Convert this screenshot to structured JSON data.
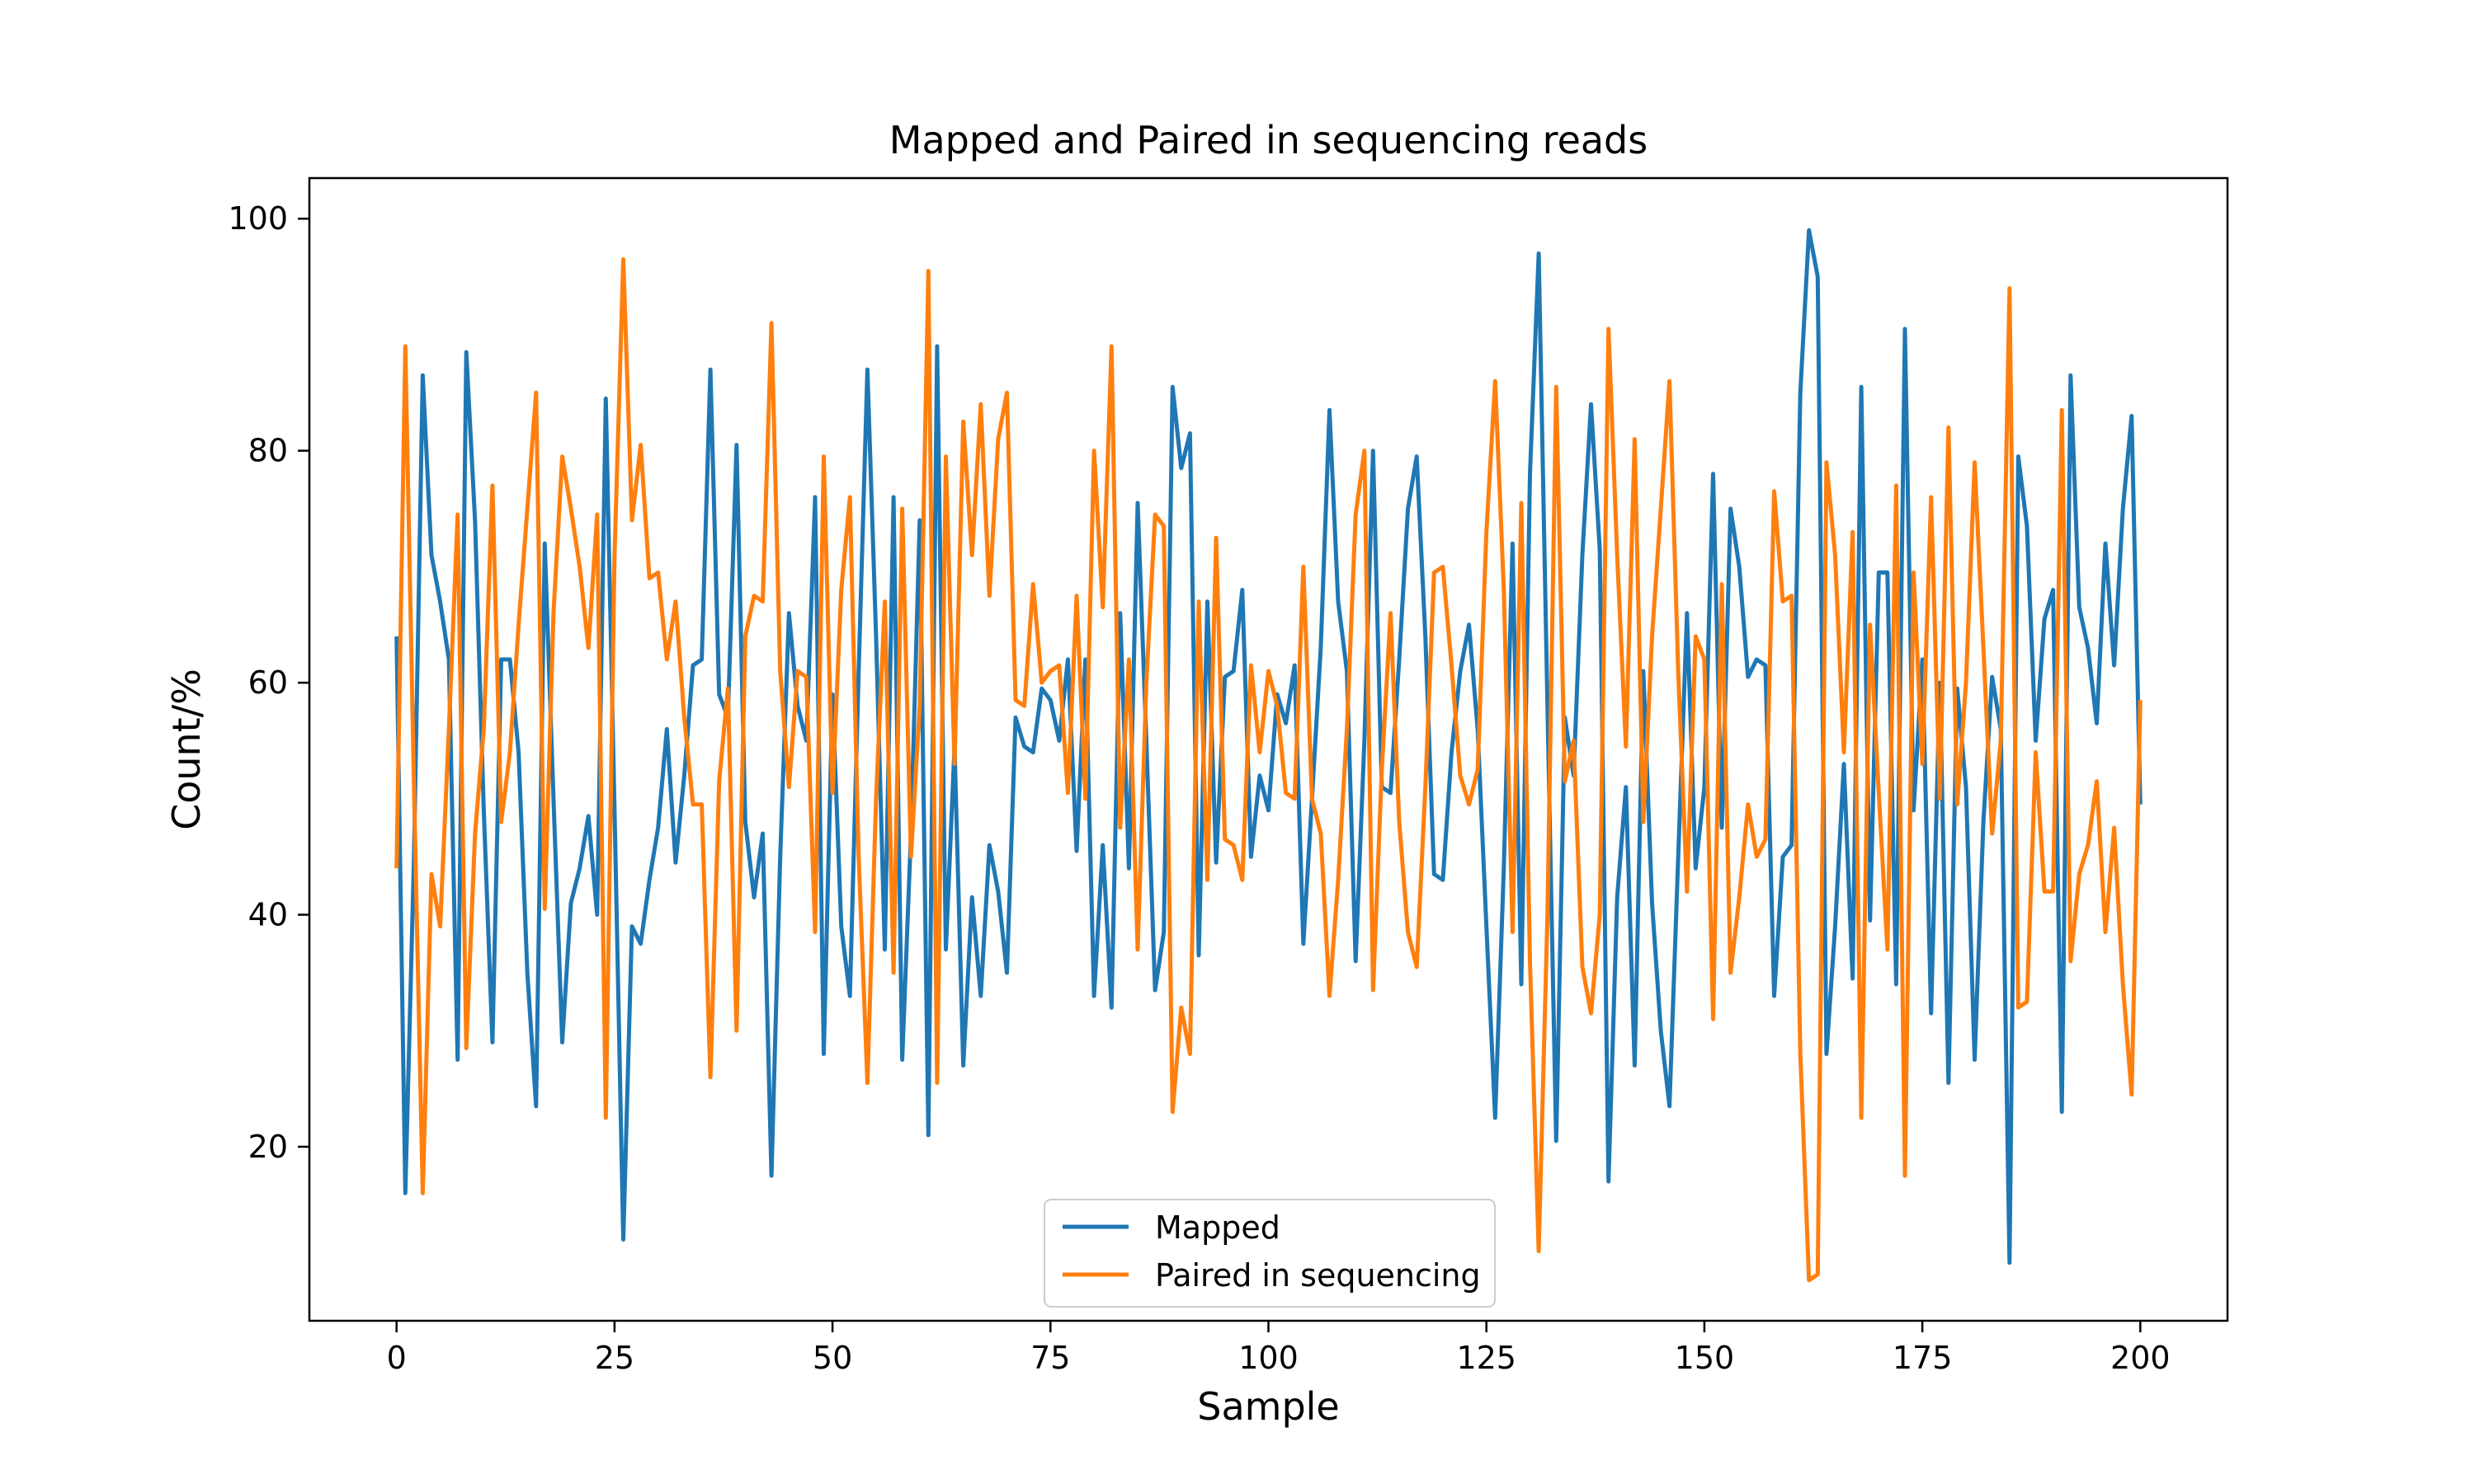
{
  "chart_data": {
    "type": "line",
    "title": "Mapped and Paired in sequencing reads",
    "xlabel": "Sample",
    "ylabel": "Count/%",
    "xlim": [
      -10,
      210
    ],
    "ylim": [
      5,
      103.5
    ],
    "xticks": [
      0,
      25,
      50,
      75,
      100,
      125,
      150,
      175,
      200
    ],
    "yticks": [
      20,
      40,
      60,
      80,
      100
    ],
    "grid": false,
    "legend_position": "lower center",
    "x": [
      0,
      1,
      2,
      3,
      4,
      5,
      6,
      7,
      8,
      9,
      10,
      11,
      12,
      13,
      14,
      15,
      16,
      17,
      18,
      19,
      20,
      21,
      22,
      23,
      24,
      25,
      26,
      27,
      28,
      29,
      30,
      31,
      32,
      33,
      34,
      35,
      36,
      37,
      38,
      39,
      40,
      41,
      42,
      43,
      44,
      45,
      46,
      47,
      48,
      49,
      50,
      51,
      52,
      53,
      54,
      55,
      56,
      57,
      58,
      59,
      60,
      61,
      62,
      63,
      64,
      65,
      66,
      67,
      68,
      69,
      70,
      71,
      72,
      73,
      74,
      75,
      76,
      77,
      78,
      79,
      80,
      81,
      82,
      83,
      84,
      85,
      86,
      87,
      88,
      89,
      90,
      91,
      92,
      93,
      94,
      95,
      96,
      97,
      98,
      99,
      100,
      101,
      102,
      103,
      104,
      105,
      106,
      107,
      108,
      109,
      110,
      111,
      112,
      113,
      114,
      115,
      116,
      117,
      118,
      119,
      120,
      121,
      122,
      123,
      124,
      125,
      126,
      127,
      128,
      129,
      130,
      131,
      132,
      133,
      134,
      135,
      136,
      137,
      138,
      139,
      140,
      141,
      142,
      143,
      144,
      145,
      146,
      147,
      148,
      149,
      150,
      151,
      152,
      153,
      154,
      155,
      156,
      157,
      158,
      159,
      160,
      161,
      162,
      163,
      164,
      165,
      166,
      167,
      168,
      169,
      170,
      171,
      172,
      173,
      174,
      175,
      176,
      177,
      178,
      179,
      180,
      181,
      182,
      183,
      184,
      185,
      186,
      187,
      188,
      189,
      190,
      191,
      192,
      193,
      194,
      195,
      196,
      197,
      198,
      199,
      200
    ],
    "series": [
      {
        "name": "Mapped",
        "color": "#1f77b4",
        "values": [
          64,
          16,
          45,
          86.5,
          71,
          67,
          62,
          27.5,
          88.5,
          74,
          49,
          29,
          62,
          62,
          54,
          35,
          23.5,
          72,
          50,
          29,
          41,
          44,
          48.5,
          40,
          84.5,
          49,
          12,
          39,
          37.5,
          43,
          47.5,
          56,
          44.5,
          52,
          61.5,
          62,
          87,
          59,
          57,
          80.5,
          48,
          41.5,
          47,
          17.5,
          45,
          66,
          58,
          55,
          76,
          28,
          59,
          39,
          33,
          61,
          87,
          64,
          37,
          76,
          27.5,
          47,
          74,
          21,
          89,
          37,
          54.5,
          27,
          41.5,
          33,
          46,
          42,
          35,
          57,
          54.5,
          54,
          59.5,
          58.5,
          55,
          62,
          45.5,
          62,
          33,
          46,
          32,
          66,
          44,
          75.5,
          55,
          33.5,
          38.5,
          85.5,
          78.5,
          81.5,
          36.5,
          67,
          44.5,
          60.5,
          61,
          68,
          45,
          52,
          49,
          59,
          56.5,
          61.5,
          37.5,
          50,
          63,
          83.5,
          67,
          61,
          36,
          55,
          80,
          51,
          50.5,
          62,
          75,
          79.5,
          64,
          43.5,
          43,
          54,
          61,
          65,
          56,
          39,
          22.5,
          44,
          72,
          34,
          78,
          97,
          58,
          20.5,
          57,
          52,
          71,
          84,
          71.5,
          17,
          41.5,
          51,
          27,
          61,
          41,
          30,
          23.5,
          45,
          66,
          44,
          51,
          78,
          47.5,
          75,
          70,
          60.5,
          62,
          61.5,
          33,
          45,
          46,
          85,
          99,
          95,
          28,
          39,
          53,
          34.5,
          85.5,
          39.5,
          69.5,
          69.5,
          34,
          90.5,
          49,
          62,
          31.5,
          60,
          25.5,
          59.5,
          51,
          27.5,
          48,
          60.5,
          56,
          10,
          79.5,
          73.5,
          55,
          65.5,
          68,
          23,
          86.5,
          66.5,
          63,
          56.5,
          72,
          61.5,
          75,
          83,
          49.5
        ]
      },
      {
        "name": "Paired in sequencing",
        "color": "#ff7f0e",
        "values": [
          44,
          89,
          51,
          16,
          43.5,
          39,
          56,
          74.5,
          28.5,
          47,
          56,
          77,
          48,
          54,
          65,
          75,
          85,
          40.5,
          66,
          79.5,
          75,
          70,
          63,
          74.5,
          22.5,
          71,
          96.5,
          74,
          80.5,
          69,
          69.5,
          62,
          67,
          57,
          49.5,
          49.5,
          26,
          51.5,
          59.5,
          30,
          64,
          67.5,
          67,
          91,
          61,
          51,
          61,
          60.5,
          38.5,
          79.5,
          50.5,
          68,
          76,
          45,
          25.5,
          50,
          67,
          35,
          75,
          45,
          58,
          95.5,
          25.5,
          79.5,
          53,
          82.5,
          71,
          84,
          67.5,
          81,
          85,
          58.5,
          58,
          68.5,
          60,
          61,
          61.5,
          50.5,
          67.5,
          50,
          80,
          66.5,
          89,
          47.5,
          62,
          37,
          60,
          74.5,
          73.5,
          23,
          32,
          28,
          67,
          43,
          72.5,
          46.5,
          46,
          43,
          61.5,
          54,
          61,
          58,
          50.5,
          50,
          70,
          50,
          47,
          33,
          43,
          56,
          74.5,
          80,
          33.5,
          52.5,
          66,
          48,
          38.5,
          35.5,
          51,
          69.5,
          70,
          61.5,
          52,
          49.5,
          52.5,
          73,
          86,
          68,
          38.5,
          75.5,
          36,
          11,
          40,
          85.5,
          51.5,
          55,
          35.5,
          31.5,
          40,
          90.5,
          71,
          54.5,
          81,
          48,
          64,
          75,
          86,
          61,
          42,
          64,
          62,
          31,
          68.5,
          35,
          41.5,
          49.5,
          45,
          46.5,
          76.5,
          67,
          67.5,
          28,
          8.5,
          9,
          79,
          71,
          54,
          73,
          22.5,
          65,
          50.5,
          37,
          77,
          17.5,
          69.5,
          53,
          76,
          50,
          82,
          49.5,
          60,
          79,
          63,
          47,
          55,
          94,
          32,
          32.5,
          54,
          42,
          42,
          83.5,
          36,
          43.5,
          46,
          51.5,
          38.5,
          47.5,
          34,
          24.5,
          58.5
        ]
      }
    ]
  }
}
